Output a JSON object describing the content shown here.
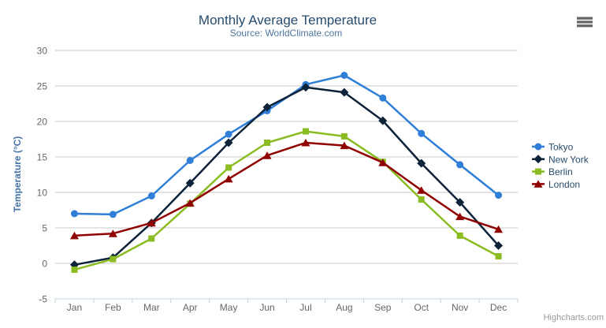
{
  "header": {
    "title": "Monthly Average Temperature",
    "subtitle": "Source: WorldClimate.com"
  },
  "credit": "Highcharts.com",
  "toolbar": {
    "export_menu_icon": "hamburger-icon"
  },
  "theme": {
    "title_color": "#274b6d",
    "subtitle_color": "#4d759e",
    "axis_title_color": "#4572a7",
    "tick_label_color": "#666666",
    "legend_text_color": "#274b6d",
    "gridline_color": "#c8c8c8",
    "axis_line_color": "#c0d0e0",
    "hamburger_color": "#666666",
    "credit_color": "#999999",
    "background_color": "#ffffff"
  },
  "chart_data": {
    "type": "line",
    "title": "Monthly Average Temperature",
    "subtitle": "Source: WorldClimate.com",
    "xlabel": "",
    "ylabel": "Temperature (°C)",
    "ylim": [
      -5,
      30
    ],
    "ytick_step": 5,
    "yticks": [
      -5,
      0,
      5,
      10,
      15,
      20,
      25,
      30
    ],
    "grid": true,
    "legend_position": "right",
    "categories": [
      "Jan",
      "Feb",
      "Mar",
      "Apr",
      "May",
      "Jun",
      "Jul",
      "Aug",
      "Sep",
      "Oct",
      "Nov",
      "Dec"
    ],
    "series": [
      {
        "name": "Tokyo",
        "color": "#2f7ed8",
        "marker": "circle",
        "values": [
          7.0,
          6.9,
          9.5,
          14.5,
          18.2,
          21.5,
          25.2,
          26.5,
          23.3,
          18.3,
          13.9,
          9.6
        ]
      },
      {
        "name": "New York",
        "color": "#0d233a",
        "marker": "diamond",
        "values": [
          -0.2,
          0.8,
          5.7,
          11.3,
          17.0,
          22.0,
          24.8,
          24.1,
          20.1,
          14.1,
          8.6,
          2.5
        ]
      },
      {
        "name": "Berlin",
        "color": "#8bbc21",
        "marker": "square",
        "values": [
          -0.9,
          0.6,
          3.5,
          8.4,
          13.5,
          17.0,
          18.6,
          17.9,
          14.3,
          9.0,
          3.9,
          1.0
        ]
      },
      {
        "name": "London",
        "color": "#910000",
        "marker": "triangle",
        "values": [
          3.9,
          4.2,
          5.7,
          8.5,
          11.9,
          15.2,
          17.0,
          16.6,
          14.2,
          10.3,
          6.6,
          4.8
        ]
      }
    ]
  }
}
